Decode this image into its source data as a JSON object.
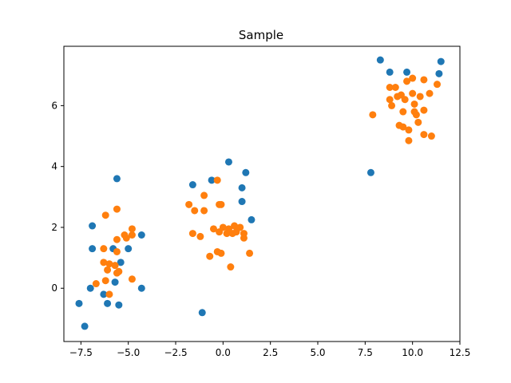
{
  "chart_data": {
    "type": "scatter",
    "title": "Sample",
    "xlabel": "",
    "ylabel": "",
    "xlim": [
      -8.4,
      12.5
    ],
    "ylim": [
      -1.75,
      7.95
    ],
    "grid": false,
    "xticks": [
      -7.5,
      -5.0,
      -2.5,
      0.0,
      2.5,
      5.0,
      7.5,
      10.0,
      12.5
    ],
    "xtick_labels": [
      "−7.5",
      "−5.0",
      "−2.5",
      "0.0",
      "2.5",
      "5.0",
      "7.5",
      "10.0",
      "12.5"
    ],
    "yticks": [
      0,
      2,
      4,
      6
    ],
    "ytick_labels": [
      "0",
      "2",
      "4",
      "6"
    ],
    "series": [
      {
        "color": "#1f77b4",
        "points": [
          [
            8.3,
            7.5
          ],
          [
            8.8,
            7.1
          ],
          [
            9.7,
            7.1
          ],
          [
            11.4,
            7.05
          ],
          [
            11.5,
            7.45
          ],
          [
            7.8,
            3.8
          ],
          [
            0.3,
            4.15
          ],
          [
            -0.6,
            3.55
          ],
          [
            -1.6,
            3.4
          ],
          [
            1.2,
            3.8
          ],
          [
            1.0,
            3.3
          ],
          [
            1.0,
            2.85
          ],
          [
            1.5,
            2.25
          ],
          [
            -1.1,
            -0.8
          ],
          [
            -5.6,
            3.6
          ],
          [
            -6.9,
            2.05
          ],
          [
            -6.9,
            1.3
          ],
          [
            -5.8,
            1.3
          ],
          [
            -5.0,
            1.3
          ],
          [
            -4.3,
            1.75
          ],
          [
            -5.4,
            0.85
          ],
          [
            -5.7,
            0.2
          ],
          [
            -6.3,
            -0.2
          ],
          [
            -7.0,
            0.0
          ],
          [
            -4.3,
            0.0
          ],
          [
            -7.6,
            -0.5
          ],
          [
            -6.1,
            -0.5
          ],
          [
            -5.5,
            -0.55
          ],
          [
            -7.3,
            -1.25
          ]
        ]
      },
      {
        "color": "#ff7f0e",
        "points": [
          [
            7.9,
            5.7
          ],
          [
            8.8,
            6.6
          ],
          [
            8.8,
            6.2
          ],
          [
            8.9,
            6.0
          ],
          [
            9.2,
            6.3
          ],
          [
            9.4,
            6.35
          ],
          [
            9.6,
            6.2
          ],
          [
            9.7,
            6.8
          ],
          [
            10.0,
            6.9
          ],
          [
            10.1,
            6.05
          ],
          [
            10.1,
            5.8
          ],
          [
            10.2,
            5.7
          ],
          [
            10.3,
            5.45
          ],
          [
            10.4,
            6.3
          ],
          [
            10.6,
            6.85
          ],
          [
            10.6,
            5.85
          ],
          [
            10.9,
            6.4
          ],
          [
            11.3,
            6.7
          ],
          [
            9.3,
            5.35
          ],
          [
            9.5,
            5.3
          ],
          [
            9.8,
            5.2
          ],
          [
            9.8,
            4.85
          ],
          [
            10.6,
            5.05
          ],
          [
            11.0,
            5.0
          ],
          [
            9.5,
            5.8
          ],
          [
            9.1,
            6.6
          ],
          [
            10.0,
            6.4
          ],
          [
            -0.3,
            3.55
          ],
          [
            -1.0,
            3.05
          ],
          [
            -1.8,
            2.75
          ],
          [
            -1.5,
            2.55
          ],
          [
            -1.0,
            2.55
          ],
          [
            -0.1,
            2.75
          ],
          [
            -0.2,
            2.75
          ],
          [
            -0.5,
            1.95
          ],
          [
            -0.2,
            1.85
          ],
          [
            0.0,
            2.0
          ],
          [
            0.3,
            1.95
          ],
          [
            0.6,
            2.05
          ],
          [
            0.7,
            1.85
          ],
          [
            0.9,
            2.0
          ],
          [
            1.1,
            1.8
          ],
          [
            1.1,
            1.65
          ],
          [
            -1.6,
            1.8
          ],
          [
            -1.2,
            1.7
          ],
          [
            0.2,
            1.8
          ],
          [
            0.5,
            1.8
          ],
          [
            -0.3,
            1.2
          ],
          [
            -0.1,
            1.15
          ],
          [
            -0.7,
            1.05
          ],
          [
            1.4,
            1.15
          ],
          [
            0.4,
            0.7
          ],
          [
            -5.6,
            2.6
          ],
          [
            -6.2,
            2.4
          ],
          [
            -4.8,
            1.95
          ],
          [
            -5.2,
            1.75
          ],
          [
            -5.1,
            1.65
          ],
          [
            -4.8,
            1.75
          ],
          [
            -5.6,
            1.6
          ],
          [
            -6.3,
            1.3
          ],
          [
            -5.6,
            1.2
          ],
          [
            -6.3,
            0.85
          ],
          [
            -6.0,
            0.8
          ],
          [
            -5.7,
            0.75
          ],
          [
            -6.1,
            0.6
          ],
          [
            -5.5,
            0.55
          ],
          [
            -5.6,
            0.5
          ],
          [
            -4.8,
            0.3
          ],
          [
            -6.7,
            0.15
          ],
          [
            -6.2,
            0.25
          ],
          [
            -6.0,
            -0.2
          ]
        ]
      }
    ]
  }
}
